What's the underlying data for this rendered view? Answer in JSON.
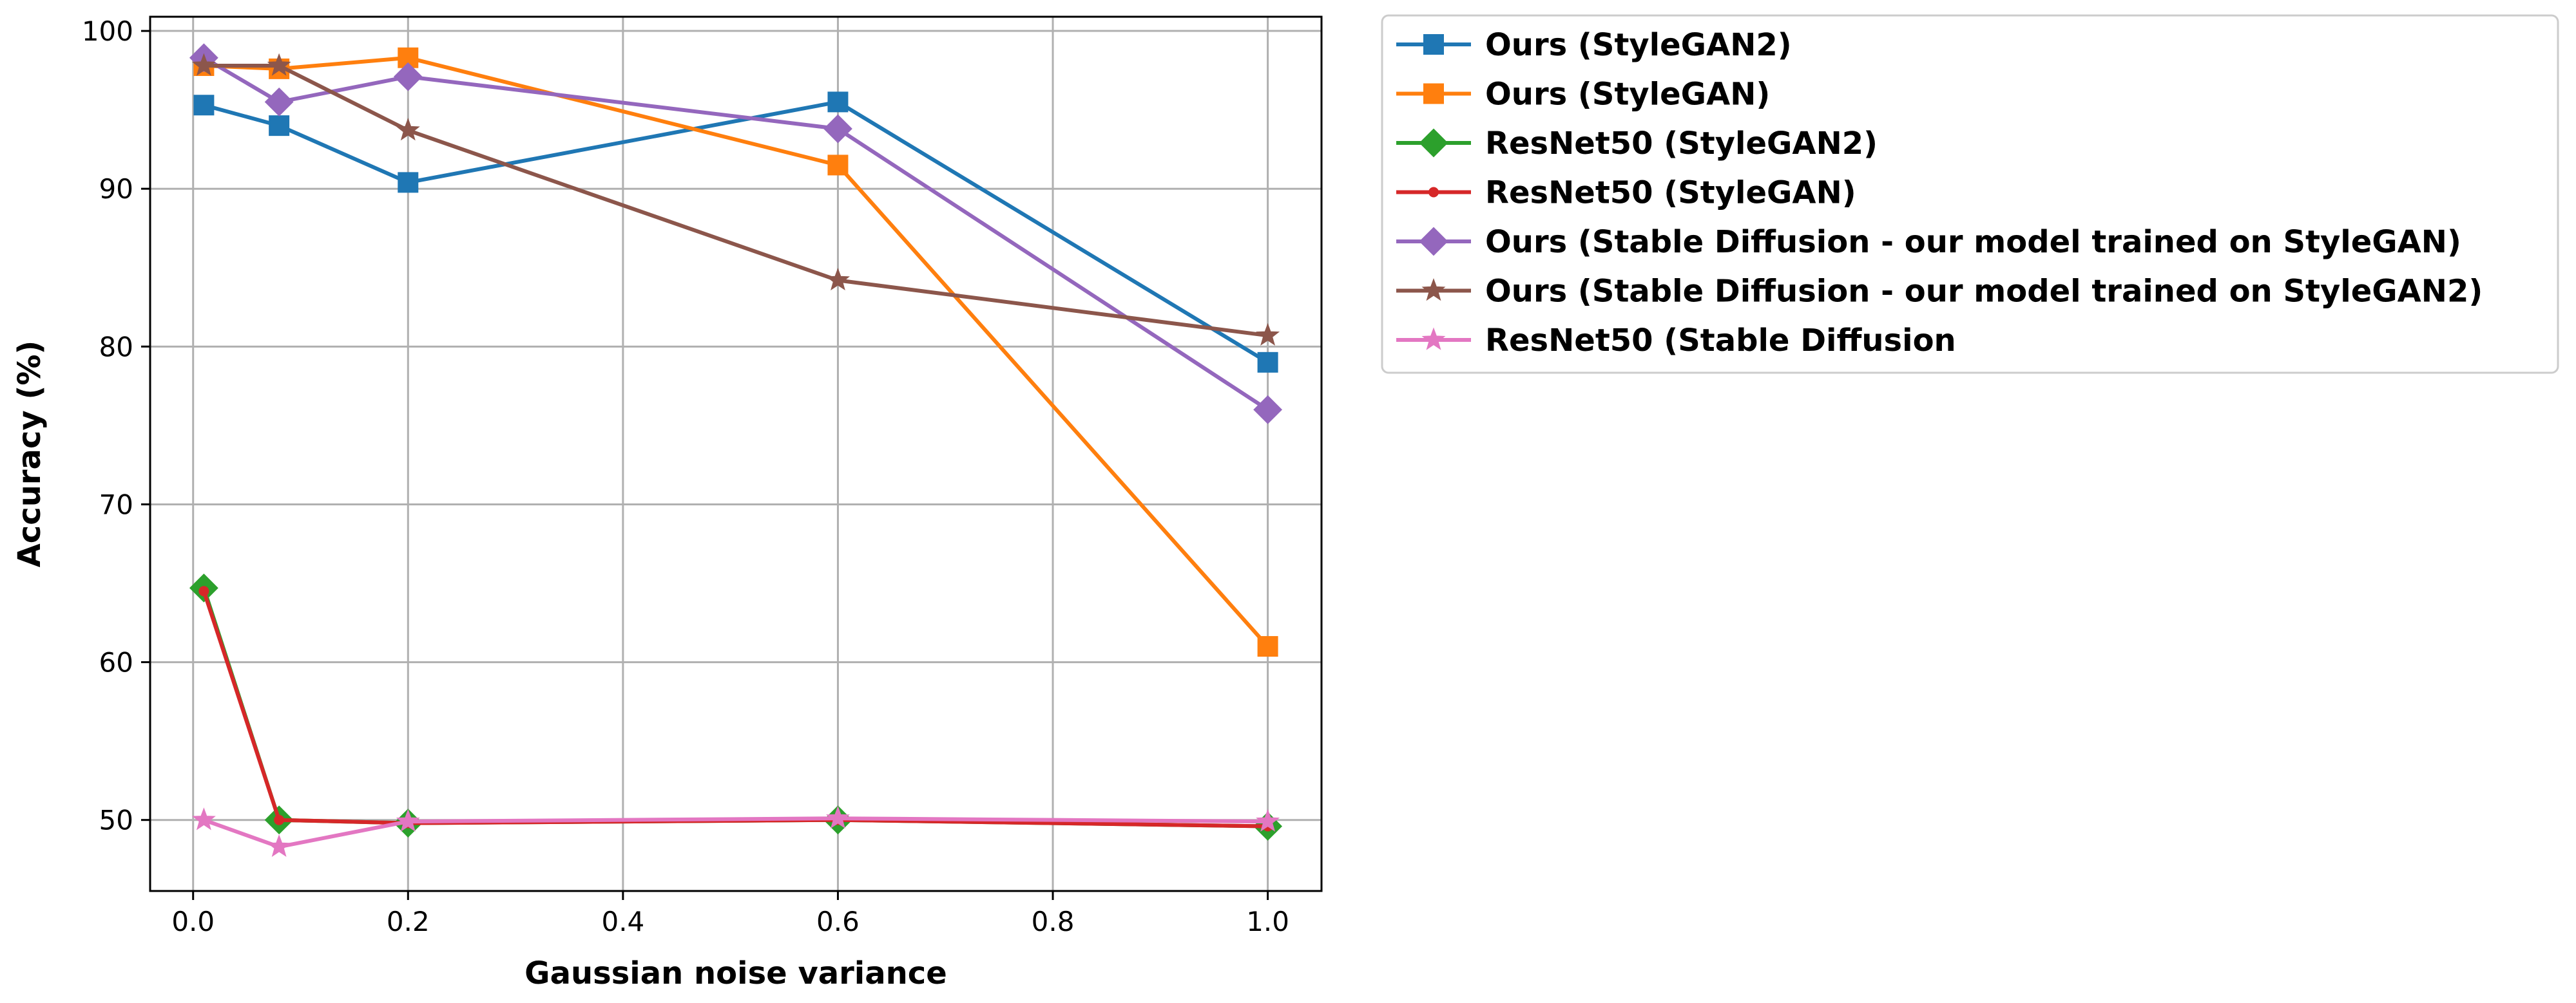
{
  "chart_data": {
    "type": "line",
    "title": "",
    "xlabel": "Gaussian noise variance",
    "ylabel": "Accuracy (%)",
    "xlim": [
      -0.04,
      1.05
    ],
    "ylim": [
      45.5,
      100.9
    ],
    "x_ticks": [
      0.0,
      0.2,
      0.4,
      0.6,
      0.8,
      1.0
    ],
    "x_tick_labels": [
      "0.0",
      "0.2",
      "0.4",
      "0.6",
      "0.8",
      "1.0"
    ],
    "y_ticks": [
      50,
      60,
      70,
      80,
      90,
      100
    ],
    "y_tick_labels": [
      "50",
      "60",
      "70",
      "80",
      "90",
      "100"
    ],
    "grid": true,
    "legend_position": "outside-top-right",
    "x": [
      0.01,
      0.08,
      0.2,
      0.6,
      1.0
    ],
    "series": [
      {
        "name": "Ours (StyleGAN2)",
        "color": "#1f77b4",
        "marker": "square",
        "values": [
          95.3,
          94.0,
          90.4,
          95.5,
          79.0
        ]
      },
      {
        "name": "Ours (StyleGAN)",
        "color": "#ff7f0e",
        "marker": "square",
        "values": [
          97.8,
          97.6,
          98.3,
          91.5,
          61.0
        ]
      },
      {
        "name": "ResNet50 (StyleGAN2)",
        "color": "#2ca02c",
        "marker": "diamond",
        "values": [
          64.7,
          50.0,
          49.8,
          50.0,
          49.6
        ]
      },
      {
        "name": "ResNet50 (StyleGAN)",
        "color": "#d62728",
        "marker": "dot",
        "values": [
          64.5,
          50.0,
          49.8,
          50.0,
          49.6
        ]
      },
      {
        "name": "Ours (Stable Diffusion - our model trained on StyleGAN)",
        "color": "#9467bd",
        "marker": "diamond",
        "values": [
          98.3,
          95.5,
          97.1,
          93.8,
          76.0
        ]
      },
      {
        "name": "Ours (Stable Diffusion - our model trained on StyleGAN2)",
        "color": "#8c564b",
        "marker": "star",
        "values": [
          97.8,
          97.8,
          93.7,
          84.2,
          80.7
        ]
      },
      {
        "name": "ResNet50 (Stable Diffusion",
        "color": "#e377c2",
        "marker": "star",
        "values": [
          50.0,
          48.3,
          49.9,
          50.1,
          49.9
        ]
      }
    ]
  }
}
